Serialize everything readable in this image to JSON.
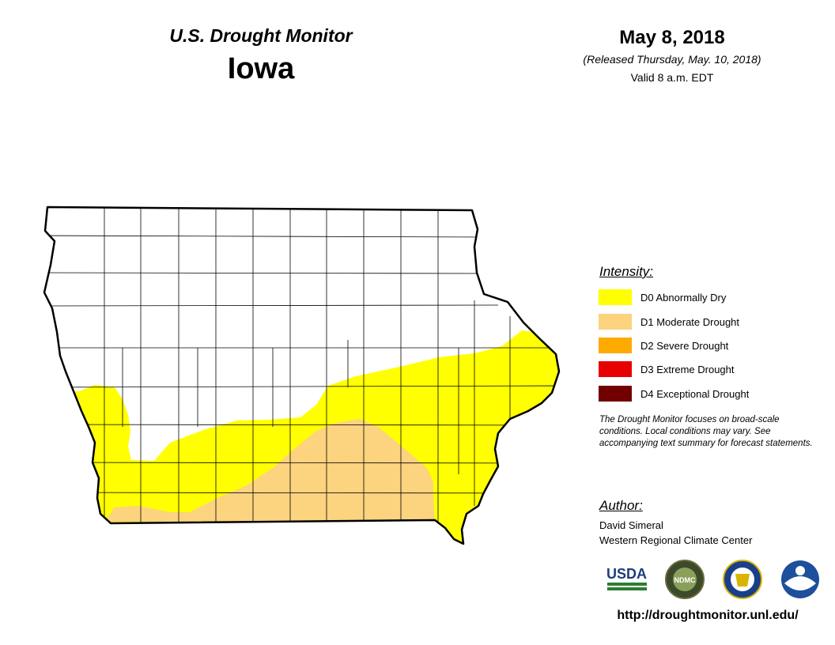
{
  "header": {
    "monitor_title": "U.S. Drought Monitor",
    "state": "Iowa",
    "date": "May 8, 2018",
    "released": "(Released Thursday, May. 10, 2018)",
    "valid": "Valid 8 a.m. EDT"
  },
  "legend": {
    "heading": "Intensity:",
    "items": [
      {
        "label": "D0 Abnormally Dry",
        "color": "#ffff00"
      },
      {
        "label": "D1 Moderate Drought",
        "color": "#fcd37f"
      },
      {
        "label": "D2 Severe Drought",
        "color": "#ffaa00"
      },
      {
        "label": "D3 Extreme Drought",
        "color": "#e60000"
      },
      {
        "label": "D4 Exceptional Drought",
        "color": "#730000"
      }
    ]
  },
  "note": "The Drought Monitor focuses on broad-scale conditions. Local conditions may vary. See accompanying text summary for forecast statements.",
  "author": {
    "heading": "Author:",
    "name": "David Simeral",
    "org": "Western Regional Climate Center"
  },
  "logos": [
    {
      "name": "usda-logo",
      "text": "USDA"
    },
    {
      "name": "ndmc-logo",
      "text": "NDMC"
    },
    {
      "name": "commerce-seal-logo"
    },
    {
      "name": "noaa-logo",
      "text": "NOAA"
    }
  ],
  "url": "http://droughtmonitor.unl.edu/"
}
